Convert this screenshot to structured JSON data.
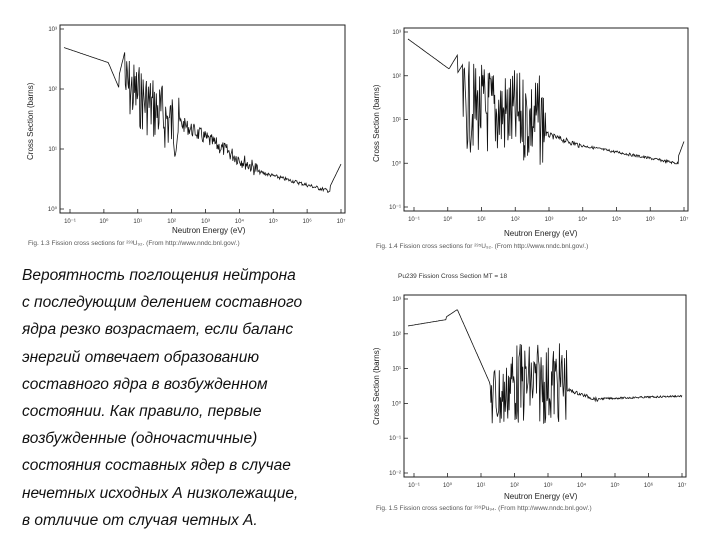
{
  "text": {
    "lines": [
      "Вероятность поглощения нейтрона",
      "с последующим делением составного",
      "ядра резко возрастает, если баланс",
      "энергий отвечает образованию",
      "составного ядра в возбужденном",
      "состоянии. Как правило, первые",
      "возбужденные (одночастичные)",
      "состояния составных ядер в случае",
      "нечетных исходных А низколежащие,",
      "в отличие от случая четных А."
    ]
  },
  "figures": [
    {
      "id": "fig13",
      "ylabel": "Cross Section (barns)",
      "xlabel": "Neutron Energy (eV)",
      "caption": "Fig. 1.3  Fission cross sections for ²³³U₉₂. (From http://www.nndc.bnl.gov/.)",
      "title": "",
      "xticks": [
        "10⁻¹",
        "10⁰",
        "10¹",
        "10²",
        "10³",
        "10⁴",
        "10⁵",
        "10⁶",
        "10⁷"
      ],
      "yticks": [
        "10³",
        "10²",
        "10¹",
        "10⁰"
      ]
    },
    {
      "id": "fig14",
      "ylabel": "Cross Section (barns)",
      "xlabel": "Neutron Energy (eV)",
      "caption": "Fig. 1.4  Fission cross sections for ²³⁵U₉₂. (From http://www.nndc.bnl.gov/.)",
      "title": "",
      "xticks": [
        "10⁻¹",
        "10⁰",
        "10¹",
        "10²",
        "10³",
        "10⁴",
        "10⁵",
        "10⁶",
        "10⁷"
      ],
      "yticks": [
        "10³",
        "10²",
        "10¹",
        "10⁰",
        "10⁻¹"
      ]
    },
    {
      "id": "fig15",
      "ylabel": "Cross Section (barns)",
      "xlabel": "Neutron Energy (eV)",
      "caption": "Fig. 1.5  Fission cross sections for ²³⁹Pu₉₄. (From http://www.nndc.bnl.gov/.)",
      "title": "Pu239 Fission Cross Section MT = 18",
      "xticks": [
        "10⁻¹",
        "10⁰",
        "10¹",
        "10²",
        "10³",
        "10⁴",
        "10⁵",
        "10⁶",
        "10⁷"
      ],
      "yticks": [
        "10³",
        "10²",
        "10¹",
        "10⁰",
        "10⁻¹",
        "10⁻²"
      ]
    }
  ]
}
